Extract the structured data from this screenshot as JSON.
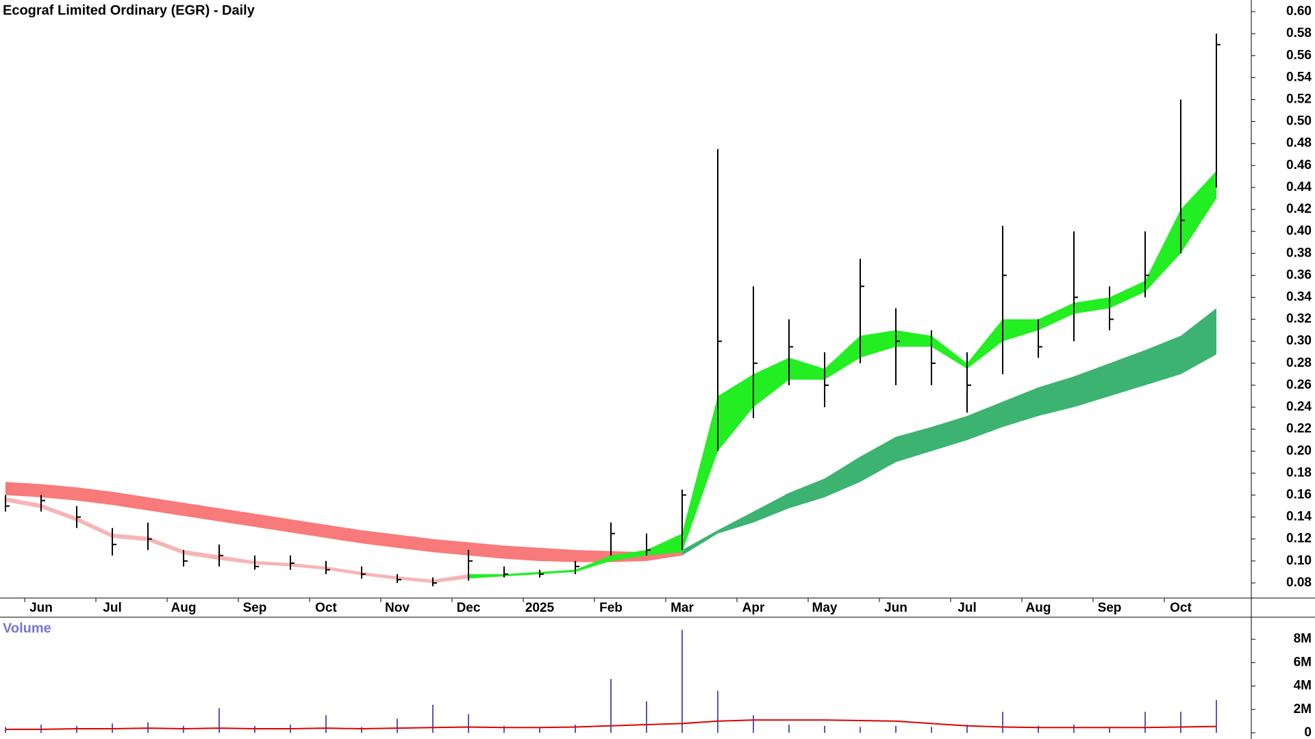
{
  "chart_data": [
    {
      "type": "ohlc",
      "title": "Ecograf Limited Ordinary (EGR) - Daily",
      "categories": [
        null,
        "Jun",
        null,
        "Jul",
        null,
        "Aug",
        null,
        "Sep",
        null,
        "Oct",
        null,
        "Nov",
        null,
        "Dec",
        null,
        "2025",
        null,
        "Feb",
        null,
        "Mar",
        null,
        "Apr",
        null,
        "May",
        null,
        "Jun",
        null,
        "Jul",
        null,
        "Aug",
        null,
        "Sep",
        null,
        "Oct",
        null
      ],
      "series": [
        {
          "color": "#000000",
          "high": [
            0.16,
            0.16,
            0.15,
            0.13,
            0.135,
            0.11,
            0.115,
            0.105,
            0.105,
            0.1,
            0.095,
            0.088,
            0.085,
            0.11,
            0.095,
            0.092,
            0.1,
            0.135,
            0.125,
            0.165,
            0.475,
            0.35,
            0.32,
            0.29,
            0.375,
            0.33,
            0.31,
            0.29,
            0.405,
            0.32,
            0.4,
            0.35,
            0.4,
            0.52,
            0.58
          ],
          "low": [
            0.145,
            0.145,
            0.13,
            0.105,
            0.11,
            0.095,
            0.095,
            0.092,
            0.092,
            0.088,
            0.084,
            0.08,
            0.077,
            0.082,
            0.085,
            0.085,
            0.088,
            0.105,
            0.105,
            0.11,
            0.2,
            0.23,
            0.26,
            0.24,
            0.28,
            0.26,
            0.26,
            0.235,
            0.27,
            0.285,
            0.3,
            0.31,
            0.34,
            0.38,
            0.44
          ],
          "values": [
            0.15,
            0.155,
            0.14,
            0.115,
            0.12,
            0.1,
            0.105,
            0.095,
            0.098,
            0.092,
            0.088,
            0.083,
            0.08,
            0.1,
            0.088,
            0.088,
            0.095,
            0.125,
            0.11,
            0.16,
            0.3,
            0.28,
            0.295,
            0.26,
            0.35,
            0.3,
            0.28,
            0.26,
            0.36,
            0.295,
            0.34,
            0.32,
            0.36,
            0.41,
            0.57
          ]
        }
      ],
      "bands": [
        {
          "color": "#f97a7a",
          "upper": [
            0.172,
            0.17,
            0.167,
            0.163,
            0.158,
            0.153,
            0.148,
            0.143,
            0.138,
            0.133,
            0.128,
            0.124,
            0.12,
            0.117,
            0.114,
            0.112,
            0.11,
            0.109,
            0.108,
            0.11,
            null,
            null,
            null,
            null,
            null,
            null,
            null,
            null,
            null,
            null,
            null,
            null,
            null,
            null,
            null
          ],
          "lower": [
            0.16,
            0.158,
            0.155,
            0.151,
            0.146,
            0.141,
            0.136,
            0.131,
            0.126,
            0.121,
            0.116,
            0.112,
            0.108,
            0.105,
            0.102,
            0.1,
            0.099,
            0.099,
            0.1,
            0.105,
            null,
            null,
            null,
            null,
            null,
            null,
            null,
            null,
            null,
            null,
            null,
            null,
            null,
            null,
            null
          ]
        },
        {
          "color": "#3cb371",
          "upper": [
            null,
            null,
            null,
            null,
            null,
            null,
            null,
            null,
            null,
            null,
            null,
            null,
            null,
            null,
            null,
            null,
            null,
            null,
            null,
            0.11,
            0.128,
            0.145,
            0.162,
            0.175,
            0.195,
            0.213,
            0.222,
            0.232,
            0.245,
            0.258,
            0.268,
            0.28,
            0.292,
            0.305,
            0.33
          ],
          "lower": [
            null,
            null,
            null,
            null,
            null,
            null,
            null,
            null,
            null,
            null,
            null,
            null,
            null,
            null,
            null,
            null,
            null,
            null,
            null,
            0.105,
            0.125,
            0.135,
            0.148,
            0.158,
            0.172,
            0.19,
            0.2,
            0.21,
            0.222,
            0.232,
            0.24,
            0.25,
            0.26,
            0.27,
            0.288
          ]
        },
        {
          "color": "#f6b5b5",
          "upper": [
            0.158,
            0.152,
            0.14,
            0.125,
            0.122,
            0.11,
            0.105,
            0.1,
            0.098,
            0.095,
            0.09,
            0.086,
            0.083,
            0.088,
            null,
            null,
            null,
            null,
            null,
            null,
            null,
            null,
            null,
            null,
            null,
            null,
            null,
            null,
            null,
            null,
            null,
            null,
            null,
            null,
            null
          ],
          "lower": [
            0.154,
            0.148,
            0.136,
            0.121,
            0.118,
            0.106,
            0.101,
            0.097,
            0.095,
            0.092,
            0.087,
            0.083,
            0.08,
            0.084,
            null,
            null,
            null,
            null,
            null,
            null,
            null,
            null,
            null,
            null,
            null,
            null,
            null,
            null,
            null,
            null,
            null,
            null,
            null,
            null,
            null
          ]
        },
        {
          "color": "#22ee22",
          "upper": [
            null,
            null,
            null,
            null,
            null,
            null,
            null,
            null,
            null,
            null,
            null,
            null,
            null,
            0.088,
            0.088,
            0.09,
            0.092,
            0.105,
            0.11,
            0.125,
            0.25,
            0.27,
            0.285,
            0.275,
            0.305,
            0.31,
            0.305,
            0.28,
            0.32,
            0.32,
            0.335,
            0.34,
            0.355,
            0.42,
            0.455
          ],
          "lower": [
            null,
            null,
            null,
            null,
            null,
            null,
            null,
            null,
            null,
            null,
            null,
            null,
            null,
            0.084,
            0.086,
            0.088,
            0.09,
            0.1,
            0.105,
            0.108,
            0.2,
            0.24,
            0.265,
            0.265,
            0.285,
            0.295,
            0.295,
            0.275,
            0.3,
            0.31,
            0.325,
            0.33,
            0.345,
            0.38,
            0.43
          ]
        }
      ],
      "ylim": [
        0.07,
        0.61
      ],
      "yticks": [
        0.08,
        {
          "value": 0.1,
          "label": "0.10"
        },
        0.12,
        0.14,
        0.16,
        0.18,
        {
          "value": 0.2,
          "label": "0.20"
        },
        0.22,
        0.24,
        0.26,
        0.28,
        {
          "value": 0.3,
          "label": "0.30"
        },
        0.32,
        0.34,
        0.36,
        0.38,
        {
          "value": 0.4,
          "label": "0.40"
        },
        0.42,
        0.44,
        0.46,
        0.48,
        {
          "value": 0.5,
          "label": "0.50"
        },
        0.52,
        0.54,
        0.56,
        0.58,
        {
          "value": 0.6,
          "label": "0.60"
        }
      ]
    },
    {
      "type": "bar",
      "title": "Volume",
      "color": "#5555bb",
      "ma_color": "#dd0000",
      "values": [
        500000,
        700000,
        600000,
        800000,
        900000,
        600000,
        2100000,
        600000,
        700000,
        1500000,
        500000,
        1200000,
        2400000,
        1600000,
        600000,
        500000,
        700000,
        4600000,
        2700000,
        8800000,
        3600000,
        1500000,
        700000,
        600000,
        500000,
        600000,
        500000,
        700000,
        1800000,
        600000,
        700000,
        500000,
        1800000,
        1800000,
        2800000
      ],
      "ma": [
        300000,
        300000,
        350000,
        350000,
        400000,
        350000,
        400000,
        350000,
        350000,
        400000,
        350000,
        400000,
        450000,
        500000,
        450000,
        450000,
        500000,
        600000,
        700000,
        800000,
        1000000,
        1100000,
        1100000,
        1100000,
        1050000,
        1000000,
        800000,
        600000,
        500000,
        450000,
        450000,
        450000,
        450000,
        500000,
        550000
      ],
      "ylim": [
        0,
        10000000
      ],
      "yticks": [
        0,
        {
          "value": 2000000,
          "label": "2M"
        },
        {
          "value": 4000000,
          "label": "4M"
        },
        {
          "value": 6000000,
          "label": "6M"
        },
        {
          "value": 8000000,
          "label": "8M"
        }
      ]
    }
  ]
}
